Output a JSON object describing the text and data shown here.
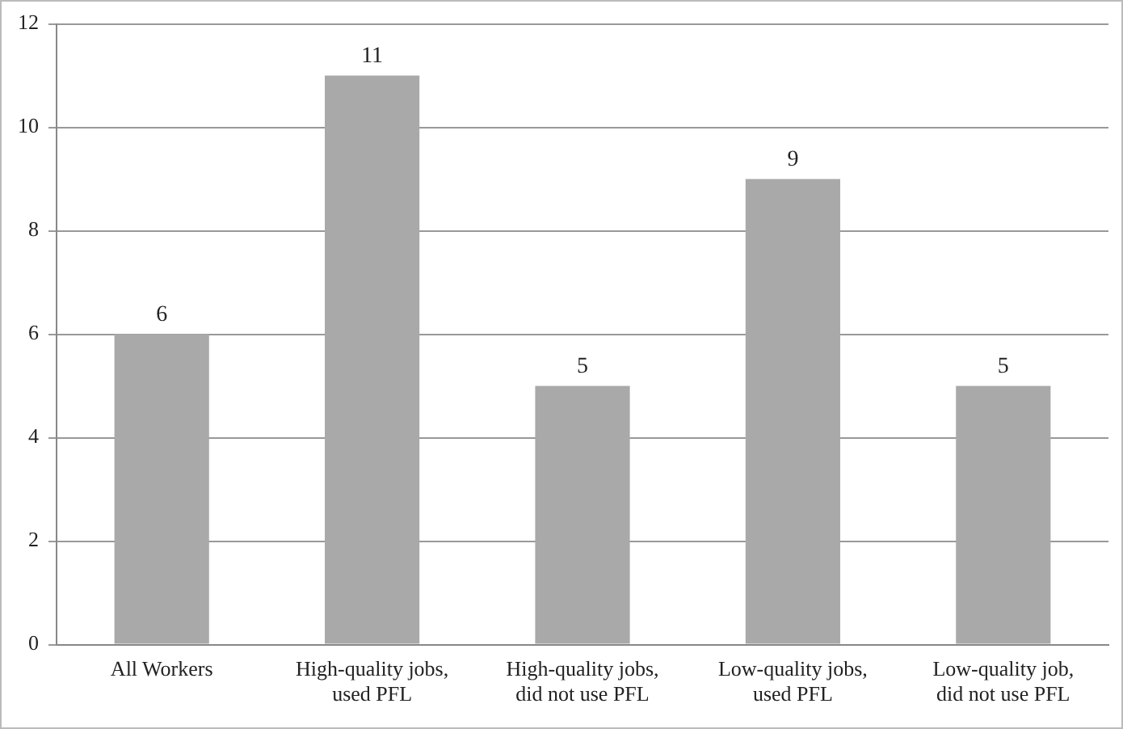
{
  "chart_data": {
    "type": "bar",
    "categories": [
      "All Workers",
      "High-quality jobs, used PFL",
      "High-quality jobs, did not use PFL",
      "Low-quality jobs, used PFL",
      "Low-quality job, did not use PFL"
    ],
    "values": [
      6,
      11,
      5,
      9,
      5
    ],
    "color": "#a9a9a9",
    "ylim": [
      0,
      12
    ],
    "yticks": [
      0,
      2,
      4,
      6,
      8,
      10,
      12
    ],
    "grid": "y",
    "data_labels": true,
    "legend": false
  }
}
